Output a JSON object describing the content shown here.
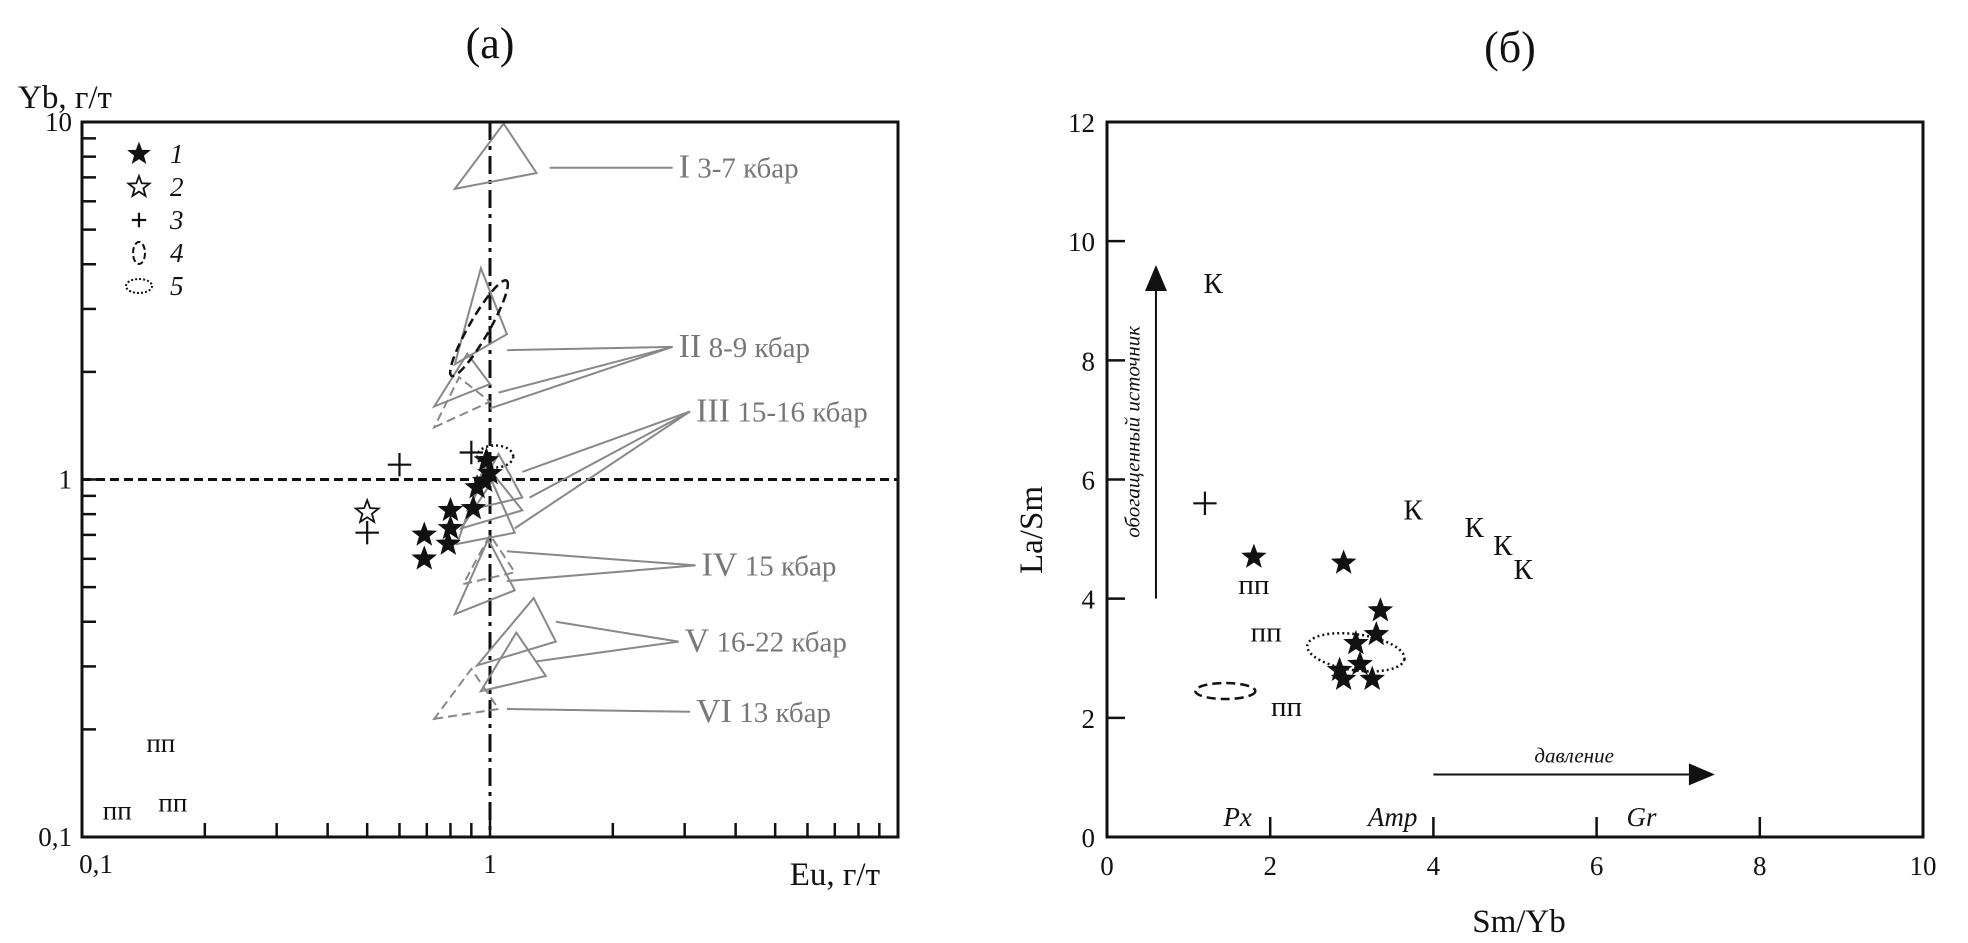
{
  "chart_data": [
    {
      "panel_label": "(а)",
      "type": "scatter",
      "xscale": "log",
      "yscale": "log",
      "xlabel": "Eu, г/т",
      "ylabel": "Yb, г/т",
      "xlim": [
        0.1,
        10
      ],
      "ylim": [
        0.1,
        10
      ],
      "x_tick_labels": [
        {
          "value": 0.1,
          "label": "0,1"
        },
        {
          "value": 1,
          "label": "1"
        }
      ],
      "y_tick_labels": [
        {
          "value": 0.1,
          "label": "0,1"
        },
        {
          "value": 1,
          "label": "1"
        },
        {
          "value": 10,
          "label": "10"
        }
      ],
      "reference_lines": [
        {
          "orientation": "vertical",
          "value": 1,
          "style": "dash-dot"
        },
        {
          "orientation": "horizontal",
          "value": 1,
          "style": "dashed"
        }
      ],
      "legend": {
        "placement": "top-left",
        "items": [
          {
            "symbol": "filled-star",
            "label": "1"
          },
          {
            "symbol": "open-star",
            "label": "2"
          },
          {
            "symbol": "plus",
            "label": "3"
          },
          {
            "symbol": "dashed-ellipse",
            "label": "4"
          },
          {
            "symbol": "dotted-ellipse",
            "label": "5"
          }
        ]
      },
      "series": [
        {
          "symbol": "filled-star",
          "points": [
            {
              "x": 0.69,
              "y": 0.7
            },
            {
              "x": 0.69,
              "y": 0.6
            },
            {
              "x": 0.79,
              "y": 0.66
            },
            {
              "x": 0.8,
              "y": 0.73
            },
            {
              "x": 0.8,
              "y": 0.82
            },
            {
              "x": 0.91,
              "y": 0.83
            },
            {
              "x": 0.93,
              "y": 0.95
            },
            {
              "x": 0.97,
              "y": 0.99
            },
            {
              "x": 1.0,
              "y": 1.04
            },
            {
              "x": 0.98,
              "y": 1.13
            }
          ]
        },
        {
          "symbol": "open-star",
          "points": [
            {
              "x": 0.5,
              "y": 0.81
            }
          ]
        },
        {
          "symbol": "plus",
          "points": [
            {
              "x": 0.5,
              "y": 0.71
            },
            {
              "x": 0.6,
              "y": 1.1
            },
            {
              "x": 0.9,
              "y": 1.19
            }
          ]
        }
      ],
      "text_points": [
        {
          "x": 0.156,
          "y": 0.182,
          "label": "пп"
        },
        {
          "x": 0.122,
          "y": 0.118,
          "label": "пп"
        },
        {
          "x": 0.167,
          "y": 0.124,
          "label": "пп"
        }
      ],
      "ellipses": [
        {
          "style": "dashed",
          "label": "4",
          "center": [
            0.94,
            2.65
          ],
          "angle_deg": -60,
          "rx": 55,
          "ry": 10
        },
        {
          "style": "dotted",
          "label": "5",
          "center": [
            1.03,
            1.16
          ],
          "angle_deg": 0,
          "rx": 18,
          "ry": 11
        }
      ],
      "triangles": [
        {
          "group": "I",
          "style": "solid",
          "points": [
            [
              0.82,
              6.5
            ],
            [
              1.3,
              7.2
            ],
            [
              1.08,
              9.9
            ]
          ]
        },
        {
          "group": "II",
          "style": "solid",
          "points": [
            [
              0.82,
              2.1
            ],
            [
              1.1,
              2.55
            ],
            [
              0.95,
              3.9
            ]
          ]
        },
        {
          "group": "II",
          "style": "solid",
          "points": [
            [
              0.73,
              1.6
            ],
            [
              1.0,
              1.85
            ],
            [
              0.88,
              2.25
            ]
          ]
        },
        {
          "group": "II",
          "style": "dashed",
          "points": [
            [
              0.73,
              1.4
            ],
            [
              1.0,
              1.65
            ],
            [
              0.84,
              1.93
            ]
          ]
        },
        {
          "group": "III",
          "style": "solid",
          "points": [
            [
              0.88,
              0.82
            ],
            [
              1.2,
              0.89
            ],
            [
              1.05,
              1.18
            ]
          ]
        },
        {
          "group": "III",
          "style": "solid",
          "points": [
            [
              0.85,
              0.73
            ],
            [
              1.2,
              0.82
            ],
            [
              1.03,
              1.02
            ]
          ]
        },
        {
          "group": "III",
          "style": "solid",
          "points": [
            [
              0.83,
              0.66
            ],
            [
              1.15,
              0.71
            ],
            [
              0.97,
              1.1
            ]
          ]
        },
        {
          "group": "IV",
          "style": "dashed",
          "points": [
            [
              0.86,
              0.51
            ],
            [
              1.15,
              0.55
            ],
            [
              1.0,
              0.7
            ]
          ]
        },
        {
          "group": "IV",
          "style": "solid",
          "points": [
            [
              0.82,
              0.42
            ],
            [
              1.15,
              0.49
            ],
            [
              0.99,
              0.68
            ]
          ]
        },
        {
          "group": "V",
          "style": "solid",
          "points": [
            [
              0.93,
              0.302
            ],
            [
              1.45,
              0.352
            ],
            [
              1.28,
              0.466
            ]
          ]
        },
        {
          "group": "V",
          "style": "solid",
          "points": [
            [
              0.95,
              0.256
            ],
            [
              1.37,
              0.282
            ],
            [
              1.16,
              0.373
            ]
          ]
        },
        {
          "group": "VI",
          "style": "dashed",
          "points": [
            [
              0.73,
              0.214
            ],
            [
              1.05,
              0.228
            ],
            [
              0.9,
              0.295
            ]
          ]
        }
      ],
      "annotations": [
        {
          "roman": "I",
          "text": "3-7 кбар",
          "x": 2.9,
          "y": 7.45,
          "leaders": [
            [
              1.4,
              7.45
            ]
          ]
        },
        {
          "roman": "II",
          "text": "8-9 кбар",
          "x": 2.9,
          "y": 2.35,
          "leaders": [
            [
              1.1,
              2.3
            ],
            [
              1.05,
              1.75
            ],
            [
              1.0,
              1.58
            ]
          ]
        },
        {
          "roman": "III",
          "text": "15-16 кбар",
          "x": 3.2,
          "y": 1.55,
          "leaders": [
            [
              1.2,
              1.05
            ],
            [
              1.25,
              0.89
            ],
            [
              1.15,
              0.73
            ]
          ]
        },
        {
          "roman": "IV",
          "text": "15 кбар",
          "x": 3.3,
          "y": 0.575,
          "leaders": [
            [
              1.1,
              0.63
            ],
            [
              1.1,
              0.52
            ]
          ]
        },
        {
          "roman": "V",
          "text": "16-22 кбар",
          "x": 3.0,
          "y": 0.352,
          "leaders": [
            [
              1.45,
              0.4
            ],
            [
              1.3,
              0.31
            ]
          ]
        },
        {
          "roman": "VI",
          "text": "13 кбар",
          "x": 3.2,
          "y": 0.224,
          "leaders": [
            [
              1.1,
              0.228
            ]
          ]
        }
      ]
    },
    {
      "panel_label": "(б)",
      "type": "scatter",
      "xlabel": "Sm/Yb",
      "ylabel": "La/Sm",
      "xlim": [
        0,
        10
      ],
      "ylim": [
        0,
        12
      ],
      "x_ticks": [
        0,
        2,
        4,
        6,
        8,
        10
      ],
      "y_ticks": [
        0,
        2,
        4,
        6,
        8,
        10,
        12
      ],
      "series": [
        {
          "symbol": "filled-star",
          "points": [
            {
              "x": 1.8,
              "y": 4.7
            },
            {
              "x": 2.9,
              "y": 4.6
            },
            {
              "x": 3.35,
              "y": 3.8
            },
            {
              "x": 3.3,
              "y": 3.4
            },
            {
              "x": 3.05,
              "y": 3.25
            },
            {
              "x": 2.85,
              "y": 2.8
            },
            {
              "x": 3.1,
              "y": 2.9
            },
            {
              "x": 2.9,
              "y": 2.65
            },
            {
              "x": 3.25,
              "y": 2.65
            }
          ]
        },
        {
          "symbol": "plus",
          "points": [
            {
              "x": 1.2,
              "y": 5.6
            }
          ]
        }
      ],
      "text_points": [
        {
          "x": 1.3,
          "y": 9.3,
          "label": "К"
        },
        {
          "x": 3.75,
          "y": 5.5,
          "label": "К"
        },
        {
          "x": 4.5,
          "y": 5.2,
          "label": "К"
        },
        {
          "x": 4.85,
          "y": 4.9,
          "label": "К"
        },
        {
          "x": 5.1,
          "y": 4.5,
          "label": "К"
        },
        {
          "x": 1.8,
          "y": 4.25,
          "label": "пп"
        },
        {
          "x": 1.95,
          "y": 3.45,
          "label": "пп"
        },
        {
          "x": 2.2,
          "y": 2.2,
          "label": "пп"
        }
      ],
      "ellipses": [
        {
          "style": "dashed",
          "center": [
            1.45,
            2.45
          ],
          "angle_deg": 0,
          "rx": 30,
          "ry": 8
        },
        {
          "style": "dotted",
          "center": [
            3.05,
            3.1
          ],
          "angle_deg": 8,
          "rx": 49,
          "ry": 18
        }
      ],
      "mineral_labels": [
        {
          "x": 1.6,
          "label": "Px"
        },
        {
          "x": 3.5,
          "label": "Amp"
        },
        {
          "x": 6.55,
          "label": "Gr"
        }
      ],
      "arrows": [
        {
          "label": "обогащенный источник",
          "from": [
            0.6,
            4.0
          ],
          "to": [
            0.6,
            9.6
          ],
          "label_x": 0.4
        },
        {
          "label": "давление",
          "from": [
            4.0,
            1.05
          ],
          "to": [
            7.45,
            1.05
          ],
          "label_y": 1.25
        }
      ]
    }
  ]
}
